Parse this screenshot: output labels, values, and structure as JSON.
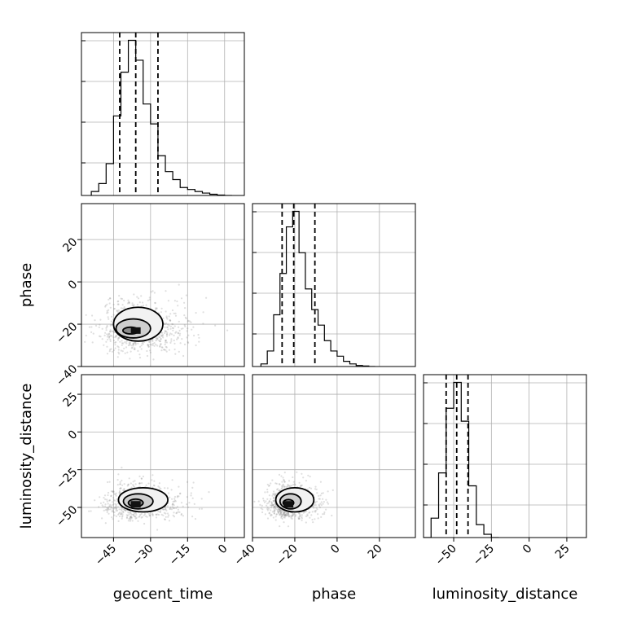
{
  "chart_data": {
    "type": "corner",
    "parameters": [
      {
        "name": "geocent_time",
        "range": [
          -58,
          8
        ],
        "ticks": [
          -45,
          -30,
          -15,
          0
        ],
        "tick_labels": [
          "−45",
          "−30",
          "−15",
          "0"
        ],
        "quantiles": [
          -42.5,
          -36.0,
          -27.0
        ]
      },
      {
        "name": "phase",
        "range": [
          -40,
          37
        ],
        "ticks": [
          -40,
          -20,
          0,
          20
        ],
        "tick_labels": [
          "−40",
          "−20",
          "0",
          "20"
        ],
        "quantiles": [
          -26.0,
          -20.5,
          -10.5
        ]
      },
      {
        "name": "luminosity_distance",
        "range": [
          -70,
          38
        ],
        "ticks": [
          -50,
          -25,
          0,
          25
        ],
        "tick_labels": [
          "−50",
          "−25",
          "0",
          "25"
        ],
        "quantiles": [
          -55.0,
          -48.0,
          -40.5
        ]
      }
    ],
    "xlabels": [
      "geocent_time",
      "phase",
      "luminosity_distance"
    ],
    "ylabels": [
      "",
      "phase",
      "luminosity_distance"
    ],
    "histograms": [
      {
        "parameter": "geocent_time",
        "bin_edges": [
          -54,
          -51,
          -48,
          -45,
          -42,
          -39,
          -36,
          -33,
          -30,
          -27,
          -24,
          -21,
          -18,
          -15,
          -12,
          -9,
          -6,
          -3,
          0,
          3
        ],
        "counts": [
          1,
          3,
          8,
          20,
          31,
          39,
          34,
          23,
          18,
          10,
          6,
          4,
          2,
          1.5,
          1,
          0.6,
          0.3,
          0.1,
          0
        ]
      },
      {
        "parameter": "phase",
        "bin_edges": [
          -36,
          -33,
          -30,
          -27,
          -24,
          -21,
          -18,
          -15,
          -12,
          -9,
          -6,
          -3,
          0,
          3,
          6,
          9,
          12,
          15,
          18
        ],
        "counts": [
          0.5,
          3,
          10,
          18,
          27,
          30,
          22,
          15,
          11,
          8,
          5,
          3,
          2,
          1,
          0.5,
          0.2,
          0.1,
          0
        ]
      },
      {
        "parameter": "luminosity_distance",
        "bin_edges": [
          -70,
          -65,
          -60,
          -55,
          -50,
          -45,
          -40,
          -35,
          -30,
          -25,
          -20
        ],
        "counts": [
          0,
          3,
          10,
          20,
          24,
          18,
          8,
          2,
          0.5,
          0
        ]
      }
    ],
    "pairs": [
      {
        "x": "geocent_time",
        "y": "phase",
        "center": [
          -36,
          -23
        ],
        "spread": [
          7,
          5
        ],
        "contours": [
          [
            -38,
            -23,
            3.2,
            1.6
          ],
          [
            -37,
            -22,
            7,
            4.5
          ],
          [
            -35,
            -20,
            10,
            8
          ]
        ]
      },
      {
        "x": "geocent_time",
        "y": "luminosity_distance",
        "center": [
          -36,
          -48
        ],
        "spread": [
          6,
          5
        ],
        "contours": [
          [
            -36,
            -47,
            3,
            2.5
          ],
          [
            -35,
            -46,
            6,
            5
          ],
          [
            -33,
            -45,
            10,
            8
          ]
        ]
      },
      {
        "x": "phase",
        "y": "luminosity_distance",
        "center": [
          -23,
          -48
        ],
        "spread": [
          5,
          5
        ],
        "contours": [
          [
            -23,
            -47,
            2.5,
            2.2
          ],
          [
            -22,
            -46,
            5,
            5
          ],
          [
            -20,
            -45,
            9,
            8
          ]
        ]
      }
    ],
    "grid": true,
    "colors": {
      "line": "#000000",
      "grid": "#b0b0b0",
      "points": "#808080"
    }
  }
}
